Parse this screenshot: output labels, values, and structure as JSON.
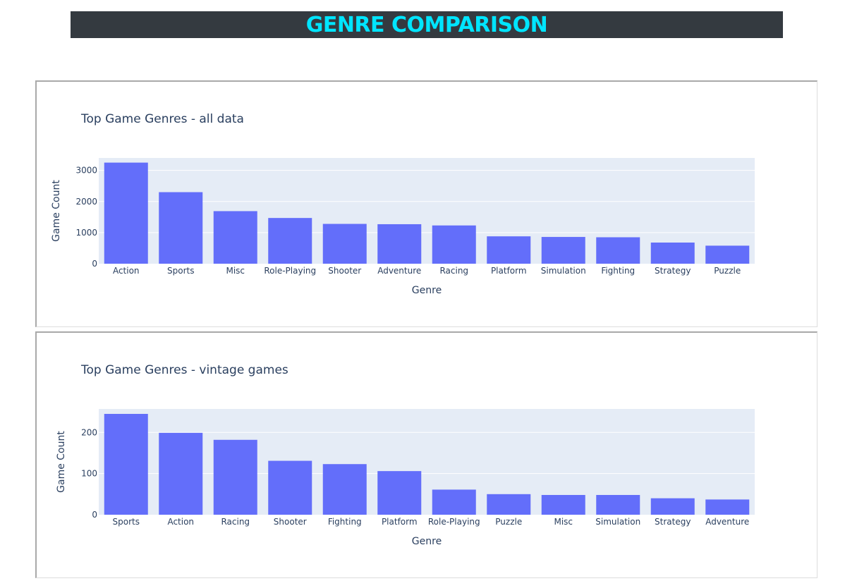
{
  "header": {
    "title": "GENRE COMPARISON"
  },
  "colors": {
    "bar": "#636efa",
    "plot_bg": "#e5ecf6",
    "banner_bg": "#343a40",
    "banner_text": "#00e5ff",
    "text": "#2a3f5f"
  },
  "chart_data": [
    {
      "type": "bar",
      "title": "Top Game Genres - all data",
      "xlabel": "Genre",
      "ylabel": "Game Count",
      "ylim": [
        0,
        3400
      ],
      "yticks": [
        0,
        1000,
        2000,
        3000
      ],
      "grid": true,
      "categories": [
        "Action",
        "Sports",
        "Misc",
        "Role-Playing",
        "Shooter",
        "Adventure",
        "Racing",
        "Platform",
        "Simulation",
        "Fighting",
        "Strategy",
        "Puzzle"
      ],
      "values": [
        3250,
        2300,
        1690,
        1470,
        1280,
        1270,
        1230,
        880,
        860,
        850,
        680,
        580
      ]
    },
    {
      "type": "bar",
      "title": "Top Game Genres - vintage games",
      "xlabel": "Genre",
      "ylabel": "Game Count",
      "ylim": [
        0,
        257
      ],
      "yticks": [
        0,
        100,
        200
      ],
      "grid": true,
      "categories": [
        "Sports",
        "Action",
        "Racing",
        "Shooter",
        "Fighting",
        "Platform",
        "Role-Playing",
        "Puzzle",
        "Misc",
        "Simulation",
        "Strategy",
        "Adventure"
      ],
      "values": [
        245,
        199,
        182,
        131,
        123,
        106,
        61,
        50,
        48,
        48,
        40,
        37
      ]
    }
  ]
}
